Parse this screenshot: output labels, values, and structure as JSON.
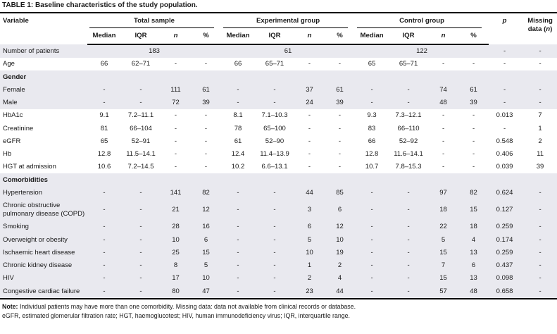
{
  "caption": {
    "label": "TABLE 1:",
    "text": "Baseline characteristics of the study population."
  },
  "colors": {
    "shaded_row": "#e9e9ef",
    "rule": "#000000",
    "text": "#1a1a1a"
  },
  "table": {
    "variable_header": "Variable",
    "groups": [
      {
        "label": "Total sample"
      },
      {
        "label": "Experimental group"
      },
      {
        "label": "Control group"
      }
    ],
    "subheaders": [
      "Median",
      "IQR",
      "n",
      "%"
    ],
    "p_header": "p",
    "missing_header": {
      "pre": "Missing data (",
      "it": "n",
      "post": ")"
    },
    "rows": [
      {
        "type": "span",
        "label": "Number of patients",
        "values": [
          "183",
          "61",
          "122"
        ],
        "p": "-",
        "missing": "-",
        "shaded": true
      },
      {
        "type": "data",
        "label": "Age",
        "cells": [
          "66",
          "62–71",
          "-",
          "-",
          "66",
          "65–71",
          "-",
          "-",
          "65",
          "65–71",
          "-",
          "-"
        ],
        "p": "-",
        "missing": "-",
        "shaded": false
      },
      {
        "type": "category",
        "label": "Gender",
        "shaded": true
      },
      {
        "type": "data",
        "label": "Female",
        "cells": [
          "-",
          "-",
          "111",
          "61",
          "-",
          "-",
          "37",
          "61",
          "-",
          "-",
          "74",
          "61"
        ],
        "p": "-",
        "missing": "-",
        "shaded": true
      },
      {
        "type": "data",
        "label": "Male",
        "cells": [
          "-",
          "-",
          "72",
          "39",
          "-",
          "-",
          "24",
          "39",
          "-",
          "-",
          "48",
          "39"
        ],
        "p": "-",
        "missing": "-",
        "shaded": true
      },
      {
        "type": "data",
        "label": "HbA1c",
        "cells": [
          "9.1",
          "7.2–11.1",
          "-",
          "-",
          "8.1",
          "7.1–10.3",
          "-",
          "-",
          "9.3",
          "7.3–12.1",
          "-",
          "-"
        ],
        "p": "0.013",
        "missing": "7",
        "shaded": false
      },
      {
        "type": "data",
        "label": "Creatinine",
        "cells": [
          "81",
          "66–104",
          "-",
          "-",
          "78",
          "65–100",
          "-",
          "-",
          "83",
          "66–110",
          "-",
          "-"
        ],
        "p": "-",
        "missing": "1",
        "shaded": false
      },
      {
        "type": "data",
        "label": "eGFR",
        "cells": [
          "65",
          "52–91",
          "-",
          "-",
          "61",
          "52–90",
          "-",
          "-",
          "66",
          "52–92",
          "-",
          "-"
        ],
        "p": "0.548",
        "missing": "2",
        "shaded": false
      },
      {
        "type": "data",
        "label": "Hb",
        "cells": [
          "12.8",
          "11.5–14.1",
          "-",
          "-",
          "12.4",
          "11.4–13.9",
          "-",
          "-",
          "12.8",
          "11.6–14.1",
          "-",
          "-"
        ],
        "p": "0.406",
        "missing": "11",
        "shaded": false
      },
      {
        "type": "data",
        "label": "HGT at admission",
        "cells": [
          "10.6",
          "7.2–14.5",
          "-",
          "-",
          "10.2",
          "6.6–13.1",
          "-",
          "-",
          "10.7",
          "7.8–15.3",
          "-",
          "-"
        ],
        "p": "0.039",
        "missing": "39",
        "shaded": false
      },
      {
        "type": "category",
        "label": "Comorbidities",
        "shaded": true
      },
      {
        "type": "data",
        "label": "Hypertension",
        "cells": [
          "-",
          "-",
          "141",
          "82",
          "-",
          "-",
          "44",
          "85",
          "-",
          "-",
          "97",
          "82"
        ],
        "p": "0.624",
        "missing": "-",
        "shaded": true
      },
      {
        "type": "data",
        "label": "Chronic obstructive\npulmonary disease (COPD)",
        "cells": [
          "-",
          "-",
          "21",
          "12",
          "-",
          "-",
          "3",
          "6",
          "-",
          "-",
          "18",
          "15"
        ],
        "p": "0.127",
        "missing": "-",
        "shaded": true
      },
      {
        "type": "data",
        "label": "Smoking",
        "cells": [
          "-",
          "-",
          "28",
          "16",
          "-",
          "-",
          "6",
          "12",
          "-",
          "-",
          "22",
          "18"
        ],
        "p": "0.259",
        "missing": "-",
        "shaded": true
      },
      {
        "type": "data",
        "label": "Overweight or obesity",
        "cells": [
          "-",
          "-",
          "10",
          "6",
          "-",
          "-",
          "5",
          "10",
          "-",
          "-",
          "5",
          "4"
        ],
        "p": "0.174",
        "missing": "-",
        "shaded": true
      },
      {
        "type": "data",
        "label": "Ischaemic heart disease",
        "cells": [
          "-",
          "-",
          "25",
          "15",
          "-",
          "-",
          "10",
          "19",
          "-",
          "-",
          "15",
          "13"
        ],
        "p": "0.259",
        "missing": "-",
        "shaded": true
      },
      {
        "type": "data",
        "label": "Chronic kidney disease",
        "cells": [
          "-",
          "-",
          "8",
          "5",
          "-",
          "-",
          "1",
          "2",
          "-",
          "-",
          "7",
          "6"
        ],
        "p": "0.437",
        "missing": "-",
        "shaded": true
      },
      {
        "type": "data",
        "label": "HIV",
        "cells": [
          "-",
          "-",
          "17",
          "10",
          "-",
          "-",
          "2",
          "4",
          "-",
          "-",
          "15",
          "13"
        ],
        "p": "0.098",
        "missing": "-",
        "shaded": true
      },
      {
        "type": "data",
        "label": "Congestive cardiac failure",
        "cells": [
          "-",
          "-",
          "80",
          "47",
          "-",
          "-",
          "23",
          "44",
          "-",
          "-",
          "57",
          "48"
        ],
        "p": "0.658",
        "missing": "-",
        "shaded": true
      }
    ]
  },
  "notes": {
    "prefix": "Note:",
    "line1": "Individual patients may have more than one comorbidity. Missing data: data not available from clinical records or database.",
    "line2": "eGFR, estimated glomerular filtration rate; HGT, haemoglucotest; HIV, human immunodeficiency virus; IQR, interquartile range."
  }
}
